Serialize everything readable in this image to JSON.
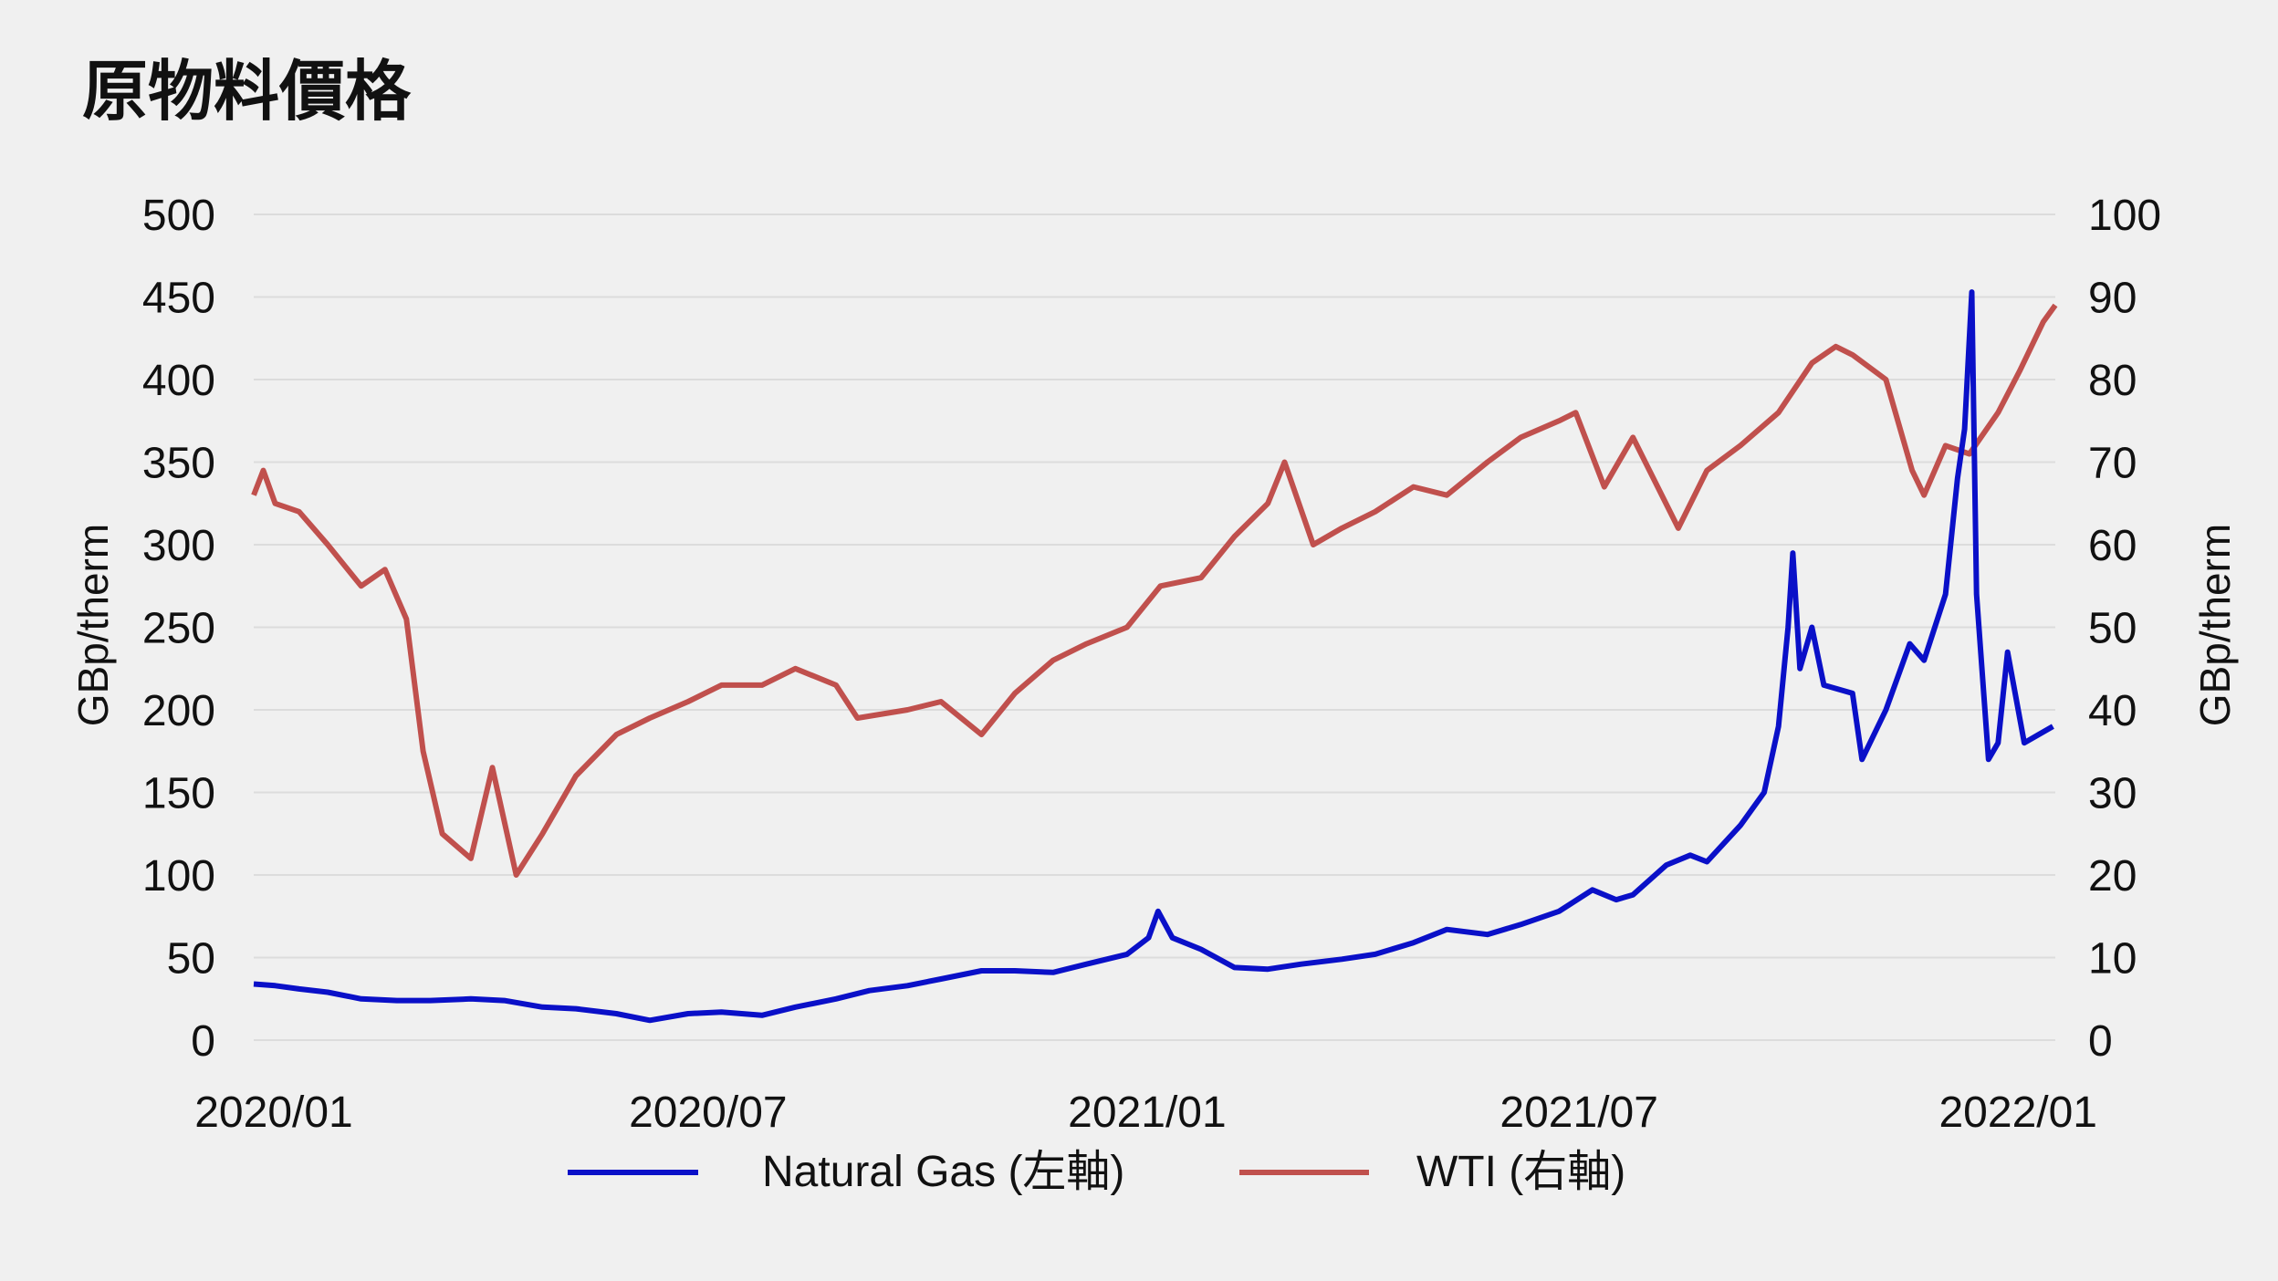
{
  "chart_data": {
    "type": "line",
    "title": "原物料價格",
    "ylabel_left": "GBp/therm",
    "ylabel_right": "GBp/therm",
    "y_left_range": [
      0,
      500
    ],
    "y_right_range": [
      0,
      100
    ],
    "y_left_ticks": [
      "0",
      "50",
      "100",
      "150",
      "200",
      "250",
      "300",
      "350",
      "400",
      "450",
      "500"
    ],
    "y_right_ticks": [
      "0",
      "10",
      "20",
      "30",
      "40",
      "50",
      "60",
      "70",
      "80",
      "90",
      "100"
    ],
    "x_range": [
      "2020-01-01",
      "2022-01-25"
    ],
    "x_ticks": [
      {
        "label": "2020/01",
        "date": "2020-01-01"
      },
      {
        "label": "2020/07",
        "date": "2020-07-01"
      },
      {
        "label": "2021/01",
        "date": "2021-01-01"
      },
      {
        "label": "2021/07",
        "date": "2021-07-01"
      },
      {
        "label": "2022/01",
        "date": "2022-01-01"
      }
    ],
    "grid": "horizontal",
    "legend_position": "bottom",
    "series": [
      {
        "name": "Natural Gas (左軸)",
        "axis": "left",
        "color": "#0a10c8",
        "points": [
          [
            "2020-01-01",
            34
          ],
          [
            "2020-01-10",
            33
          ],
          [
            "2020-01-20",
            31
          ],
          [
            "2020-02-01",
            29
          ],
          [
            "2020-02-15",
            25
          ],
          [
            "2020-03-01",
            24
          ],
          [
            "2020-03-15",
            24
          ],
          [
            "2020-04-01",
            25
          ],
          [
            "2020-04-15",
            24
          ],
          [
            "2020-05-01",
            20
          ],
          [
            "2020-05-15",
            19
          ],
          [
            "2020-06-01",
            16
          ],
          [
            "2020-06-15",
            12
          ],
          [
            "2020-07-01",
            16
          ],
          [
            "2020-07-15",
            17
          ],
          [
            "2020-08-01",
            15
          ],
          [
            "2020-08-15",
            20
          ],
          [
            "2020-09-01",
            25
          ],
          [
            "2020-09-15",
            30
          ],
          [
            "2020-10-01",
            33
          ],
          [
            "2020-10-15",
            37
          ],
          [
            "2020-11-01",
            42
          ],
          [
            "2020-11-15",
            42
          ],
          [
            "2020-12-01",
            41
          ],
          [
            "2020-12-15",
            46
          ],
          [
            "2021-01-01",
            52
          ],
          [
            "2021-01-10",
            62
          ],
          [
            "2021-01-14",
            78
          ],
          [
            "2021-01-20",
            62
          ],
          [
            "2021-02-01",
            55
          ],
          [
            "2021-02-15",
            44
          ],
          [
            "2021-03-01",
            43
          ],
          [
            "2021-03-15",
            46
          ],
          [
            "2021-04-01",
            49
          ],
          [
            "2021-04-15",
            52
          ],
          [
            "2021-05-01",
            59
          ],
          [
            "2021-05-15",
            67
          ],
          [
            "2021-06-01",
            64
          ],
          [
            "2021-06-15",
            70
          ],
          [
            "2021-07-01",
            78
          ],
          [
            "2021-07-15",
            91
          ],
          [
            "2021-07-25",
            85
          ],
          [
            "2021-08-01",
            88
          ],
          [
            "2021-08-15",
            106
          ],
          [
            "2021-08-25",
            112
          ],
          [
            "2021-09-01",
            108
          ],
          [
            "2021-09-15",
            130
          ],
          [
            "2021-09-25",
            150
          ],
          [
            "2021-10-01",
            190
          ],
          [
            "2021-10-05",
            250
          ],
          [
            "2021-10-07",
            295
          ],
          [
            "2021-10-10",
            225
          ],
          [
            "2021-10-15",
            250
          ],
          [
            "2021-10-20",
            215
          ],
          [
            "2021-11-01",
            210
          ],
          [
            "2021-11-05",
            170
          ],
          [
            "2021-11-15",
            200
          ],
          [
            "2021-11-25",
            240
          ],
          [
            "2021-12-01",
            230
          ],
          [
            "2021-12-10",
            270
          ],
          [
            "2021-12-15",
            340
          ],
          [
            "2021-12-18",
            370
          ],
          [
            "2021-12-21",
            453
          ],
          [
            "2021-12-23",
            270
          ],
          [
            "2021-12-28",
            170
          ],
          [
            "2022-01-01",
            180
          ],
          [
            "2022-01-05",
            235
          ],
          [
            "2022-01-12",
            180
          ],
          [
            "2022-01-18",
            185
          ],
          [
            "2022-01-24",
            190
          ]
        ]
      },
      {
        "name": "WTI (右軸)",
        "axis": "right",
        "color": "#c0504d",
        "points": [
          [
            "2020-01-01",
            66
          ],
          [
            "2020-01-05",
            69
          ],
          [
            "2020-01-10",
            65
          ],
          [
            "2020-01-20",
            64
          ],
          [
            "2020-02-01",
            60
          ],
          [
            "2020-02-15",
            55
          ],
          [
            "2020-02-25",
            57
          ],
          [
            "2020-03-05",
            51
          ],
          [
            "2020-03-12",
            35
          ],
          [
            "2020-03-20",
            25
          ],
          [
            "2020-04-01",
            22
          ],
          [
            "2020-04-10",
            33
          ],
          [
            "2020-04-20",
            20
          ],
          [
            "2020-05-01",
            25
          ],
          [
            "2020-05-15",
            32
          ],
          [
            "2020-06-01",
            37
          ],
          [
            "2020-06-15",
            39
          ],
          [
            "2020-07-01",
            41
          ],
          [
            "2020-07-15",
            43
          ],
          [
            "2020-08-01",
            43
          ],
          [
            "2020-08-15",
            45
          ],
          [
            "2020-09-01",
            43
          ],
          [
            "2020-09-10",
            39
          ],
          [
            "2020-10-01",
            40
          ],
          [
            "2020-10-15",
            41
          ],
          [
            "2020-11-01",
            37
          ],
          [
            "2020-11-15",
            42
          ],
          [
            "2020-12-01",
            46
          ],
          [
            "2020-12-15",
            48
          ],
          [
            "2021-01-01",
            50
          ],
          [
            "2021-01-15",
            55
          ],
          [
            "2021-02-01",
            56
          ],
          [
            "2021-02-15",
            61
          ],
          [
            "2021-03-01",
            65
          ],
          [
            "2021-03-08",
            70
          ],
          [
            "2021-03-20",
            60
          ],
          [
            "2021-04-01",
            62
          ],
          [
            "2021-04-15",
            64
          ],
          [
            "2021-05-01",
            67
          ],
          [
            "2021-05-15",
            66
          ],
          [
            "2021-06-01",
            70
          ],
          [
            "2021-06-15",
            73
          ],
          [
            "2021-07-01",
            75
          ],
          [
            "2021-07-08",
            76
          ],
          [
            "2021-07-20",
            67
          ],
          [
            "2021-08-01",
            73
          ],
          [
            "2021-08-20",
            62
          ],
          [
            "2021-09-01",
            69
          ],
          [
            "2021-09-15",
            72
          ],
          [
            "2021-10-01",
            76
          ],
          [
            "2021-10-15",
            82
          ],
          [
            "2021-10-25",
            84
          ],
          [
            "2021-11-01",
            83
          ],
          [
            "2021-11-15",
            80
          ],
          [
            "2021-11-26",
            69
          ],
          [
            "2021-12-01",
            66
          ],
          [
            "2021-12-10",
            72
          ],
          [
            "2021-12-20",
            71
          ],
          [
            "2022-01-01",
            76
          ],
          [
            "2022-01-10",
            81
          ],
          [
            "2022-01-20",
            87
          ],
          [
            "2022-01-25",
            89
          ]
        ]
      }
    ]
  }
}
